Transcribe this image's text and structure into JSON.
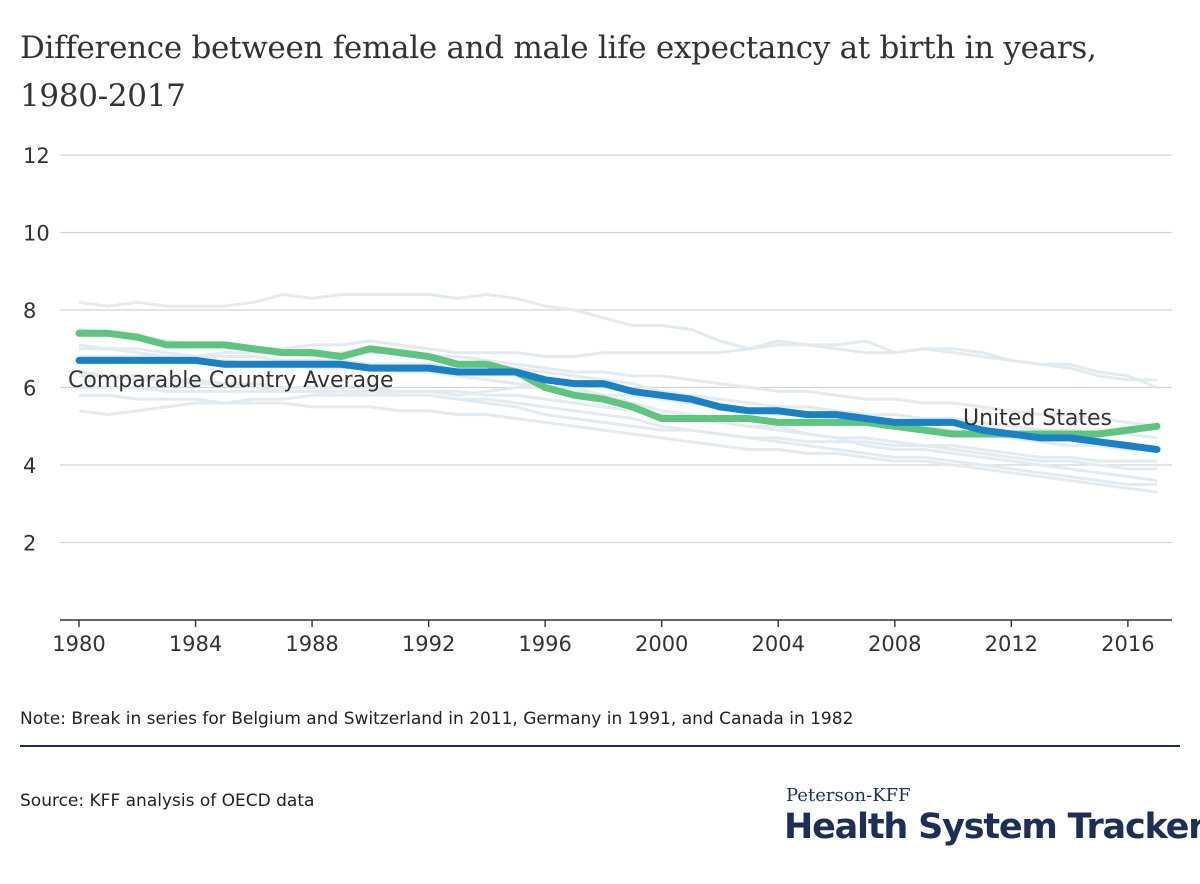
{
  "title": "Difference between female and male life expectancy at birth in years, 1980-2017",
  "note": "Note: Break in series for Belgium and Switzerland in 2011, Germany in 1991, and Canada in 1982",
  "source": "Source: KFF analysis of OECD data",
  "brand": {
    "top": "Peterson-KFF",
    "main": "Health System Tracker"
  },
  "colors": {
    "us": "#1a82c4",
    "average": "#5ec47f",
    "others": "#e4ebf0",
    "grid": "#d3d3d3",
    "axis": "#333333",
    "brand": "#1d2e57"
  },
  "chart_data": {
    "type": "line",
    "x": [
      1980,
      1981,
      1982,
      1983,
      1984,
      1985,
      1986,
      1987,
      1988,
      1989,
      1990,
      1991,
      1992,
      1993,
      1994,
      1995,
      1996,
      1997,
      1998,
      1999,
      2000,
      2001,
      2002,
      2003,
      2004,
      2005,
      2006,
      2007,
      2008,
      2009,
      2010,
      2011,
      2012,
      2013,
      2014,
      2015,
      2016,
      2017
    ],
    "xlim": [
      1980,
      2017
    ],
    "xticks": [
      1980,
      1984,
      1988,
      1992,
      1996,
      2000,
      2004,
      2008,
      2012,
      2016
    ],
    "ylim": [
      0,
      12
    ],
    "yticks": [
      2,
      4,
      6,
      8,
      10,
      12
    ],
    "grid": true,
    "series": [
      {
        "name": "Comparable Country Average",
        "role": "average",
        "values": [
          7.4,
          7.4,
          7.3,
          7.1,
          7.1,
          7.1,
          7.0,
          6.9,
          6.9,
          6.8,
          7.0,
          6.9,
          6.8,
          6.6,
          6.6,
          6.4,
          6.0,
          5.8,
          5.7,
          5.5,
          5.2,
          5.2,
          5.2,
          5.2,
          5.1,
          5.1,
          5.1,
          5.1,
          5.0,
          4.9,
          4.8,
          4.8,
          4.8,
          4.8,
          4.8,
          4.8,
          4.9,
          5.0
        ]
      },
      {
        "name": "United States",
        "role": "us",
        "values": [
          6.7,
          6.7,
          6.7,
          6.7,
          6.7,
          6.6,
          6.6,
          6.6,
          6.6,
          6.6,
          6.5,
          6.5,
          6.5,
          6.4,
          6.4,
          6.4,
          6.2,
          6.1,
          6.1,
          5.9,
          5.8,
          5.7,
          5.5,
          5.4,
          5.4,
          5.3,
          5.3,
          5.2,
          5.1,
          5.1,
          5.1,
          4.9,
          4.8,
          4.7,
          4.7,
          4.6,
          4.5,
          4.4
        ]
      },
      {
        "role": "other",
        "values": [
          8.2,
          8.1,
          8.2,
          8.1,
          8.1,
          8.1,
          8.2,
          8.4,
          8.3,
          8.4,
          8.4,
          8.4,
          8.4,
          8.3,
          8.4,
          8.3,
          8.1,
          8.0,
          7.8,
          7.6,
          7.6,
          7.5,
          7.2,
          7.0,
          7.1,
          7.1,
          7.1,
          7.2,
          6.9,
          7.0,
          6.9,
          6.8,
          6.7,
          6.6,
          6.6,
          6.4,
          6.3,
          6.0
        ]
      },
      {
        "role": "other",
        "values": [
          7.5,
          7.4,
          7.3,
          7.2,
          7.1,
          7.1,
          7.0,
          7.0,
          7.1,
          7.1,
          7.2,
          7.1,
          7.0,
          6.9,
          6.9,
          6.9,
          6.8,
          6.8,
          6.9,
          6.9,
          6.9,
          6.9,
          6.9,
          7.0,
          7.2,
          7.1,
          7.0,
          6.9,
          6.9,
          7.0,
          7.0,
          6.9,
          6.7,
          6.6,
          6.5,
          6.3,
          6.2,
          6.2
        ]
      },
      {
        "role": "other",
        "values": [
          7.1,
          7.0,
          6.9,
          6.8,
          6.8,
          6.9,
          6.9,
          6.9,
          6.8,
          6.9,
          6.9,
          6.9,
          6.8,
          6.8,
          6.7,
          6.6,
          6.5,
          6.4,
          6.4,
          6.3,
          6.3,
          6.2,
          6.1,
          6.0,
          5.9,
          5.9,
          5.8,
          5.7,
          5.7,
          5.6,
          5.6,
          5.5,
          5.4,
          5.3,
          5.3,
          5.2,
          5.1,
          5.0
        ]
      },
      {
        "role": "other",
        "values": [
          6.8,
          6.8,
          6.8,
          6.8,
          6.7,
          6.7,
          6.6,
          6.6,
          6.5,
          6.5,
          6.5,
          6.4,
          6.4,
          6.3,
          6.2,
          6.1,
          6.0,
          5.9,
          5.8,
          5.8,
          5.7,
          5.6,
          5.5,
          5.4,
          5.3,
          5.3,
          5.2,
          5.2,
          5.1,
          5.0,
          4.9,
          4.8,
          4.7,
          4.6,
          4.5,
          4.5,
          4.4,
          4.4
        ]
      },
      {
        "role": "other",
        "values": [
          6.3,
          6.3,
          6.2,
          6.2,
          6.2,
          6.1,
          6.1,
          6.0,
          6.0,
          6.0,
          6.0,
          5.9,
          5.9,
          5.9,
          5.8,
          5.8,
          5.7,
          5.6,
          5.5,
          5.4,
          5.3,
          5.2,
          5.1,
          5.0,
          4.9,
          4.8,
          4.7,
          4.7,
          4.6,
          4.5,
          4.4,
          4.3,
          4.2,
          4.1,
          4.1,
          4.0,
          3.9,
          3.9
        ]
      },
      {
        "role": "other",
        "values": [
          6.0,
          6.0,
          6.0,
          5.9,
          5.9,
          5.9,
          5.9,
          5.9,
          5.9,
          5.8,
          5.8,
          5.8,
          5.8,
          5.7,
          5.7,
          5.6,
          5.5,
          5.4,
          5.3,
          5.2,
          5.0,
          4.9,
          4.8,
          4.7,
          4.6,
          4.5,
          4.4,
          4.3,
          4.2,
          4.2,
          4.1,
          4.0,
          3.9,
          3.8,
          3.7,
          3.6,
          3.5,
          3.5
        ]
      },
      {
        "role": "other",
        "values": [
          5.8,
          5.8,
          5.7,
          5.7,
          5.7,
          5.6,
          5.6,
          5.6,
          5.5,
          5.5,
          5.5,
          5.4,
          5.4,
          5.3,
          5.3,
          5.2,
          5.1,
          5.0,
          4.9,
          4.8,
          4.7,
          4.6,
          4.5,
          4.4,
          4.4,
          4.3,
          4.3,
          4.2,
          4.1,
          4.1,
          4.0,
          3.9,
          3.8,
          3.7,
          3.6,
          3.5,
          3.4,
          3.3
        ]
      },
      {
        "role": "other",
        "values": [
          5.4,
          5.3,
          5.4,
          5.5,
          5.6,
          5.6,
          5.7,
          5.7,
          5.8,
          5.8,
          5.9,
          5.8,
          5.8,
          5.7,
          5.6,
          5.5,
          5.3,
          5.2,
          5.1,
          5.0,
          4.9,
          4.9,
          4.8,
          4.7,
          4.7,
          4.6,
          4.6,
          4.6,
          4.5,
          4.5,
          4.5,
          4.4,
          4.3,
          4.2,
          4.2,
          4.1,
          4.1,
          4.1
        ]
      },
      {
        "role": "other",
        "values": [
          6.4,
          6.3,
          6.3,
          6.2,
          6.1,
          6.1,
          6.0,
          5.9,
          5.9,
          5.9,
          5.9,
          5.9,
          5.9,
          5.8,
          5.9,
          6.0,
          6.0,
          6.0,
          5.8,
          5.6,
          5.4,
          5.3,
          5.1,
          5.0,
          5.0,
          4.8,
          4.7,
          4.5,
          4.4,
          4.4,
          4.3,
          4.2,
          4.1,
          4.0,
          3.9,
          3.8,
          3.7,
          3.6
        ]
      },
      {
        "role": "other",
        "values": [
          7.0,
          7.0,
          7.0,
          6.9,
          6.8,
          6.8,
          6.8,
          6.7,
          6.7,
          6.7,
          6.6,
          6.6,
          6.6,
          6.5,
          6.5,
          6.5,
          6.4,
          6.3,
          6.2,
          6.1,
          5.9,
          5.8,
          5.7,
          5.6,
          5.5,
          5.5,
          5.4,
          5.3,
          5.3,
          5.2,
          5.2,
          5.1,
          5.0,
          4.9,
          4.9,
          4.8,
          4.8,
          4.7
        ]
      }
    ],
    "annotations": [
      {
        "text": "Comparable Country Average",
        "series": "Comparable Country Average"
      },
      {
        "text": "United States",
        "series": "United States"
      }
    ]
  }
}
